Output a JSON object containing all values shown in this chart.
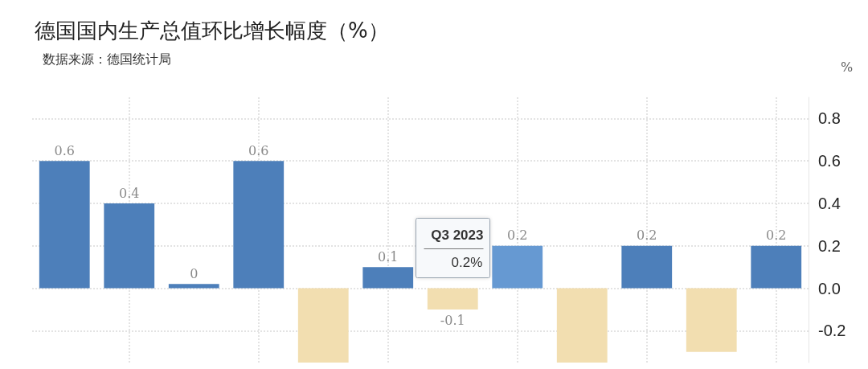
{
  "chart_data": {
    "type": "bar",
    "title": "德国国内生产总值环比增长幅度（%）",
    "subtitle": "数据来源：德国统计局",
    "ylabel": "%",
    "categories": [
      null,
      null,
      null,
      null,
      null,
      null,
      null,
      null,
      null,
      null,
      null,
      null
    ],
    "values": [
      0.6,
      0.4,
      0.02,
      0.6,
      -0.35,
      0.1,
      -0.1,
      0.2,
      -0.35,
      0.2,
      -0.3,
      0.2
    ],
    "colors": [
      "#4d7fba",
      "#4d7fba",
      "#4d7fba",
      "#4d7fba",
      "#f2deb0",
      "#4d7fba",
      "#f2deb0",
      "#6699d2",
      "#f2deb0",
      "#4d7fba",
      "#f2deb0",
      "#4d7fba"
    ],
    "value_labels": [
      "0.6",
      "0.4",
      "0",
      "0.6",
      null,
      "0.1",
      "-0.1",
      "0.2",
      null,
      "0.2",
      null,
      "0.2"
    ],
    "annotations": [
      "Q3 2023",
      "0.2%"
    ],
    "ylim": [
      -0.35,
      0.9
    ],
    "yticks": [
      -0.2,
      {
        "value": 0,
        "label": "0.0"
      },
      0.2,
      0.4,
      0.6,
      0.8
    ],
    "grid": true
  }
}
